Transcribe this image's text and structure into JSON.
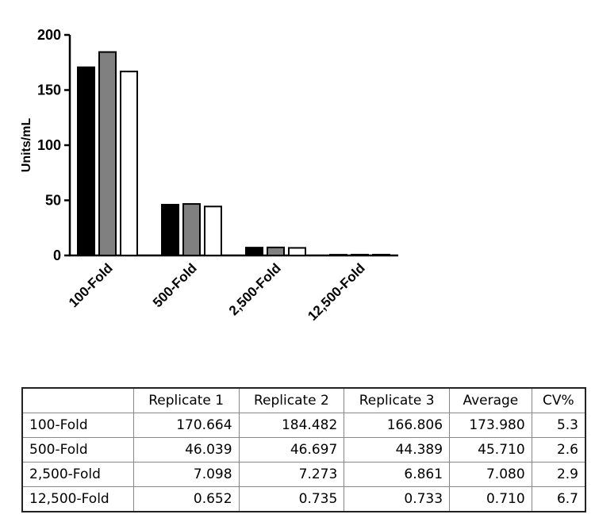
{
  "chart_data": {
    "type": "bar",
    "categories": [
      "100-Fold",
      "500-Fold",
      "2,500-Fold",
      "12,500-Fold"
    ],
    "series": [
      {
        "values": [
          170.664,
          46.039,
          7.098,
          0.652
        ],
        "color": "#000000"
      },
      {
        "values": [
          184.482,
          46.697,
          7.273,
          0.735
        ],
        "color": "#808080"
      },
      {
        "values": [
          166.806,
          44.389,
          6.861,
          0.733
        ],
        "color": "#ffffff"
      }
    ],
    "title": "",
    "xlabel": "",
    "ylabel": "Units/mL",
    "ylim": [
      0,
      200
    ],
    "yticks": [
      "0",
      "50",
      "100",
      "150",
      "200"
    ],
    "grid": false
  },
  "table": {
    "headers": [
      "",
      "Replicate 1",
      "Replicate 2",
      "Replicate 3",
      "Average",
      "CV%"
    ],
    "rows": [
      [
        "100-Fold",
        "170.664",
        "184.482",
        "166.806",
        "173.980",
        "5.3"
      ],
      [
        "500-Fold",
        "46.039",
        "46.697",
        "44.389",
        "45.710",
        "2.6"
      ],
      [
        "2,500-Fold",
        "7.098",
        "7.273",
        "6.861",
        "7.080",
        "2.9"
      ],
      [
        "12,500-Fold",
        "0.652",
        "0.735",
        "0.733",
        "0.710",
        "6.7"
      ]
    ]
  }
}
